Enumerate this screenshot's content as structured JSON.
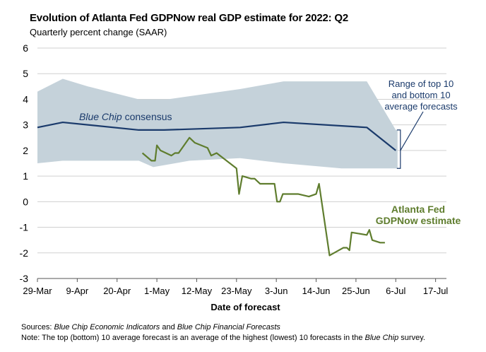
{
  "chart_data": {
    "type": "line",
    "title": "Evolution of Atlanta Fed GDPNow real GDP estimate for 2022: Q2",
    "subtitle": "Quarterly percent change (SAAR)",
    "xlabel": "Date of forecast",
    "ylabel": "Quarterly percent change (SAAR)",
    "ylim": [
      -3,
      6
    ],
    "yticks": [
      6,
      5,
      4,
      3,
      2,
      1,
      0,
      -1,
      -2,
      -3
    ],
    "xlim": [
      0,
      113
    ],
    "xticks": [
      {
        "day": 0,
        "label": "29-Mar"
      },
      {
        "day": 11,
        "label": "9-Apr"
      },
      {
        "day": 22,
        "label": "20-Apr"
      },
      {
        "day": 33,
        "label": "1-May"
      },
      {
        "day": 44,
        "label": "12-May"
      },
      {
        "day": 55,
        "label": "23-May"
      },
      {
        "day": 66,
        "label": "3-Jun"
      },
      {
        "day": 77,
        "label": "14-Jun"
      },
      {
        "day": 88,
        "label": "25-Jun"
      },
      {
        "day": 99,
        "label": "6-Jul"
      },
      {
        "day": 110,
        "label": "17-Jul"
      }
    ],
    "series": [
      {
        "name": "Range of top 10 and bottom 10 average forecasts",
        "type": "band",
        "color": "#c5d2da",
        "upper": [
          [
            0,
            4.3
          ],
          [
            7,
            4.8
          ],
          [
            14,
            4.5
          ],
          [
            28,
            4.0
          ],
          [
            36,
            4.0
          ],
          [
            56,
            4.4
          ],
          [
            68,
            4.7
          ],
          [
            84,
            4.7
          ],
          [
            91,
            4.7
          ],
          [
            99,
            2.8
          ],
          [
            99.5,
            2.8
          ]
        ],
        "lower": [
          [
            0,
            1.5
          ],
          [
            7,
            1.6
          ],
          [
            28,
            1.6
          ],
          [
            32,
            1.35
          ],
          [
            42,
            1.6
          ],
          [
            56,
            1.7
          ],
          [
            68,
            1.5
          ],
          [
            84,
            1.3
          ],
          [
            91,
            1.3
          ],
          [
            99.5,
            1.3
          ]
        ]
      },
      {
        "name": "Blue Chip consensus",
        "color": "#1a3a6b",
        "points": [
          [
            0,
            2.9
          ],
          [
            7,
            3.1
          ],
          [
            28,
            2.8
          ],
          [
            35,
            2.8
          ],
          [
            56,
            2.9
          ],
          [
            68,
            3.1
          ],
          [
            91,
            2.9
          ],
          [
            99,
            2.0
          ]
        ]
      },
      {
        "name": "Atlanta Fed GDPNow estimate",
        "color": "#5f7d2e",
        "points": [
          [
            29,
            1.9
          ],
          [
            31.5,
            1.6
          ],
          [
            32.5,
            1.6
          ],
          [
            33,
            2.2
          ],
          [
            34,
            2.0
          ],
          [
            37,
            1.8
          ],
          [
            38,
            1.9
          ],
          [
            39,
            1.9
          ],
          [
            42,
            2.5
          ],
          [
            43.5,
            2.3
          ],
          [
            47,
            2.1
          ],
          [
            48,
            1.8
          ],
          [
            49.5,
            1.9
          ],
          [
            55,
            1.3
          ],
          [
            55.7,
            0.3
          ],
          [
            56.6,
            1.0
          ],
          [
            59,
            0.9
          ],
          [
            60,
            0.9
          ],
          [
            61.5,
            0.7
          ],
          [
            65.5,
            0.7
          ],
          [
            66.2,
            0.0
          ],
          [
            67,
            0.0
          ],
          [
            67.8,
            0.3
          ],
          [
            72,
            0.3
          ],
          [
            75,
            0.2
          ],
          [
            77,
            0.3
          ],
          [
            77.8,
            0.7
          ],
          [
            80.7,
            -2.1
          ],
          [
            84.5,
            -1.8
          ],
          [
            85.5,
            -1.8
          ],
          [
            86.2,
            -1.9
          ],
          [
            86.8,
            -1.2
          ],
          [
            91,
            -1.3
          ],
          [
            91.7,
            -1.1
          ],
          [
            92.5,
            -1.5
          ],
          [
            94.7,
            -1.6
          ],
          [
            96,
            -1.6
          ]
        ]
      }
    ],
    "annotations": [
      {
        "text": "Blue Chip consensus",
        "italic_part": "Blue Chip",
        "color": "#1a3a6b"
      },
      {
        "text": "Range of top 10 and bottom 10 average forecasts",
        "lines": [
          "Range of top 10",
          "and bottom 10",
          "average forecasts"
        ],
        "color": "#1a3a6b"
      },
      {
        "text": "Atlanta Fed GDPNow estimate",
        "lines": [
          "Atlanta Fed",
          "GDPNow estimate"
        ],
        "color": "#5f7d2e"
      }
    ]
  },
  "footer": {
    "sources_label": "Sources:",
    "sources_part1": "Blue Chip Economic Indicators",
    "sources_and": "and",
    "sources_part2": "Blue Chip Financial Forecasts",
    "note_label": "Note:",
    "note_text_before": "The top (bottom) 10 average forecast is an average of the highest (lowest) 10 forecasts in the",
    "note_italic": "Blue Chip",
    "note_text_after": "survey."
  }
}
